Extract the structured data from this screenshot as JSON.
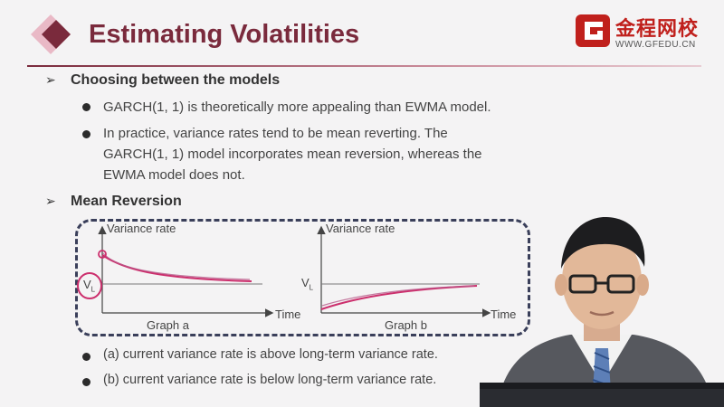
{
  "header": {
    "title": "Estimating Volatilities",
    "logo_text": "金程网校",
    "logo_url": "WWW.GFEDU.CN"
  },
  "section1": {
    "heading": "Choosing between the models",
    "bullets": [
      "GARCH(1, 1) is theoretically more appealing than EWMA model.",
      "In practice, variance rates tend to be mean reverting. The",
      "GARCH(1, 1) model incorporates mean reversion, whereas the",
      "EWMA model does not."
    ]
  },
  "section2": {
    "heading": "Mean Reversion"
  },
  "graph_a": {
    "ylabel": "Variance rate",
    "xlabel": "Time",
    "caption": "Graph a",
    "level_label": "V",
    "level_sub": "L"
  },
  "graph_b": {
    "ylabel": "Variance rate",
    "xlabel": "Time",
    "caption": "Graph b",
    "level_label": "V",
    "level_sub": "L"
  },
  "lower_bullets": [
    "(a) current variance rate is above long-term variance rate.",
    "(b) current variance rate is below long-term variance rate."
  ],
  "colors": {
    "title": "#7a2a3c",
    "curve": "#cc2f6d",
    "logo": "#c0201c"
  }
}
